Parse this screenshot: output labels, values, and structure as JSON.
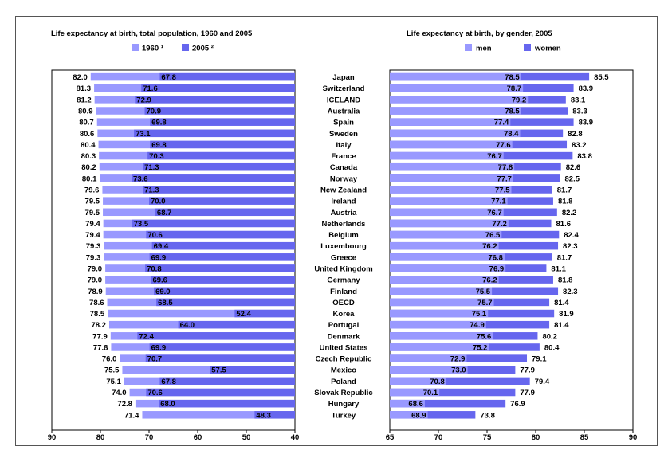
{
  "colors": {
    "light": "#9999ff",
    "dark": "#6666ee",
    "axis": "#000000"
  },
  "chart_data": [
    {
      "type": "bar",
      "title": "Life expectancy at birth, total population, 1960 and 2005",
      "orientation": "horizontal",
      "x_reversed": true,
      "xlim": [
        40,
        90
      ],
      "xticks": [
        "90",
        "80",
        "70",
        "60",
        "50",
        "40"
      ],
      "legend_position": "top",
      "categories": [
        "Japan",
        "Switzerland",
        "ICELAND",
        "Australia",
        "Spain",
        "Sweden",
        "Italy",
        "France",
        "Canada",
        "Norway",
        "New Zealand",
        "Ireland",
        "Austria",
        "Netherlands",
        "Belgium",
        "Luxembourg",
        "Greece",
        "United Kingdom",
        "Germany",
        "Finland",
        "OECD",
        "Korea",
        "Portugal",
        "Denmark",
        "United States",
        "Czech Republic",
        "Mexico",
        "Poland",
        "Slovak Republic",
        "Hungary",
        "Turkey"
      ],
      "series": [
        {
          "name": "1960 ¹",
          "values": [
            67.8,
            71.6,
            72.9,
            70.9,
            69.8,
            73.1,
            69.8,
            70.3,
            71.3,
            73.6,
            71.3,
            70.0,
            68.7,
            73.5,
            70.6,
            69.4,
            69.9,
            70.8,
            69.6,
            69.0,
            68.5,
            52.4,
            64.0,
            72.4,
            69.9,
            70.7,
            57.5,
            67.8,
            70.6,
            68.0,
            48.3
          ]
        },
        {
          "name": "2005 ²",
          "values": [
            82.0,
            81.3,
            81.2,
            80.9,
            80.7,
            80.6,
            80.4,
            80.3,
            80.2,
            80.1,
            79.6,
            79.5,
            79.5,
            79.4,
            79.4,
            79.3,
            79.3,
            79.0,
            79.0,
            78.9,
            78.6,
            78.5,
            78.2,
            77.9,
            77.8,
            76.0,
            75.5,
            75.1,
            74.0,
            72.8,
            71.4
          ]
        }
      ]
    },
    {
      "type": "bar",
      "title": "Life expectancy at birth, by gender, 2005",
      "orientation": "horizontal",
      "xlim": [
        65,
        90
      ],
      "xticks": [
        "65",
        "70",
        "75",
        "80",
        "85",
        "90"
      ],
      "legend_position": "top",
      "categories": [
        "Japan",
        "Switzerland",
        "ICELAND",
        "Australia",
        "Spain",
        "Sweden",
        "Italy",
        "France",
        "Canada",
        "Norway",
        "New Zealand",
        "Ireland",
        "Austria",
        "Netherlands",
        "Belgium",
        "Luxembourg",
        "Greece",
        "United Kingdom",
        "Germany",
        "Finland",
        "OECD",
        "Korea",
        "Portugal",
        "Denmark",
        "United States",
        "Czech Republic",
        "Mexico",
        "Poland",
        "Slovak Republic",
        "Hungary",
        "Turkey"
      ],
      "series": [
        {
          "name": "men",
          "values": [
            78.5,
            78.7,
            79.2,
            78.5,
            77.4,
            78.4,
            77.6,
            76.7,
            77.8,
            77.7,
            77.5,
            77.1,
            76.7,
            77.2,
            76.5,
            76.2,
            76.8,
            76.9,
            76.2,
            75.5,
            75.7,
            75.1,
            74.9,
            75.6,
            75.2,
            72.9,
            73.0,
            70.8,
            70.1,
            68.6,
            68.9
          ]
        },
        {
          "name": "women",
          "values": [
            85.5,
            83.9,
            83.1,
            83.3,
            83.9,
            82.8,
            83.2,
            83.8,
            82.6,
            82.5,
            81.7,
            81.8,
            82.2,
            81.6,
            82.4,
            82.3,
            81.7,
            81.1,
            81.8,
            82.3,
            81.4,
            81.9,
            81.4,
            80.2,
            80.4,
            79.1,
            77.9,
            79.4,
            77.9,
            76.9,
            73.8
          ]
        }
      ]
    }
  ]
}
